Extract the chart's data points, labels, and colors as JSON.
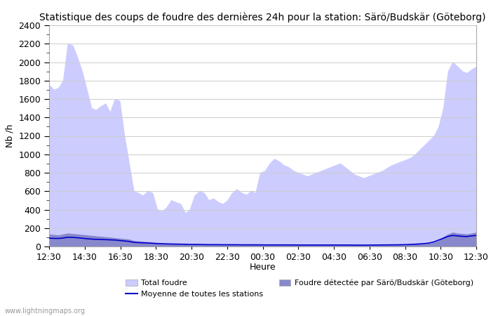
{
  "title": "Statistique des coups de foudre des dernières 24h pour la station: Särö/Budskär (Göteborg)",
  "ylabel": "Nb /h",
  "xlabel": "Heure",
  "watermark": "www.lightningmaps.org",
  "ylim": [
    0,
    2400
  ],
  "yticks": [
    0,
    200,
    400,
    600,
    800,
    1000,
    1200,
    1400,
    1600,
    1800,
    2000,
    2200,
    2400
  ],
  "xtick_labels": [
    "12:30",
    "14:30",
    "16:30",
    "18:30",
    "20:30",
    "22:30",
    "00:30",
    "02:30",
    "04:30",
    "06:30",
    "08:30",
    "10:30",
    "12:30"
  ],
  "total_foudre": [
    1750,
    1700,
    1720,
    1800,
    2200,
    2180,
    2050,
    1900,
    1700,
    1500,
    1480,
    1520,
    1550,
    1450,
    1600,
    1580,
    1200,
    900,
    600,
    580,
    550,
    600,
    580,
    400,
    380,
    420,
    500,
    480,
    460,
    360,
    400,
    550,
    600,
    580,
    500,
    520,
    480,
    460,
    500,
    580,
    620,
    580,
    560,
    600,
    580,
    800,
    820,
    900,
    950,
    920,
    880,
    860,
    820,
    800,
    780,
    760,
    780,
    800,
    820,
    840,
    860,
    880,
    900,
    860,
    820,
    780,
    760,
    740,
    760,
    780,
    800,
    820,
    850,
    880,
    900,
    920,
    940,
    960,
    1000,
    1050,
    1100,
    1150,
    1200,
    1300,
    1500,
    1900,
    2000,
    1950,
    1900,
    1880,
    1920,
    1950
  ],
  "foudre_detectee": [
    130,
    125,
    120,
    130,
    140,
    135,
    130,
    125,
    120,
    115,
    110,
    105,
    100,
    95,
    90,
    85,
    80,
    75,
    60,
    55,
    50,
    45,
    40,
    35,
    32,
    30,
    28,
    26,
    24,
    22,
    20,
    20,
    20,
    20,
    18,
    18,
    18,
    17,
    17,
    17,
    17,
    17,
    16,
    16,
    16,
    16,
    16,
    16,
    16,
    16,
    16,
    16,
    16,
    15,
    15,
    15,
    15,
    15,
    15,
    15,
    15,
    15,
    15,
    15,
    15,
    15,
    15,
    15,
    15,
    15,
    15,
    16,
    16,
    17,
    17,
    18,
    18,
    19,
    20,
    22,
    25,
    30,
    40,
    60,
    100,
    130,
    150,
    140,
    135,
    130,
    140,
    150
  ],
  "moyenne_stations": [
    90,
    88,
    87,
    92,
    100,
    98,
    95,
    90,
    85,
    80,
    78,
    76,
    74,
    72,
    70,
    65,
    60,
    55,
    45,
    42,
    40,
    38,
    35,
    32,
    30,
    28,
    27,
    26,
    25,
    24,
    22,
    22,
    22,
    21,
    20,
    20,
    20,
    19,
    19,
    19,
    19,
    18,
    18,
    18,
    18,
    18,
    17,
    17,
    17,
    17,
    17,
    17,
    17,
    16,
    16,
    16,
    16,
    16,
    16,
    16,
    16,
    16,
    16,
    16,
    16,
    15,
    15,
    15,
    15,
    16,
    16,
    17,
    17,
    18,
    18,
    19,
    20,
    22,
    25,
    28,
    32,
    38,
    50,
    70,
    90,
    110,
    120,
    115,
    110,
    108,
    115,
    120
  ],
  "color_total": "#ccccff",
  "color_detectee": "#8888cc",
  "color_moyenne": "#0000cc",
  "background_color": "#ffffff",
  "grid_color": "#cccccc",
  "title_fontsize": 10,
  "axis_fontsize": 9,
  "tick_fontsize": 9
}
